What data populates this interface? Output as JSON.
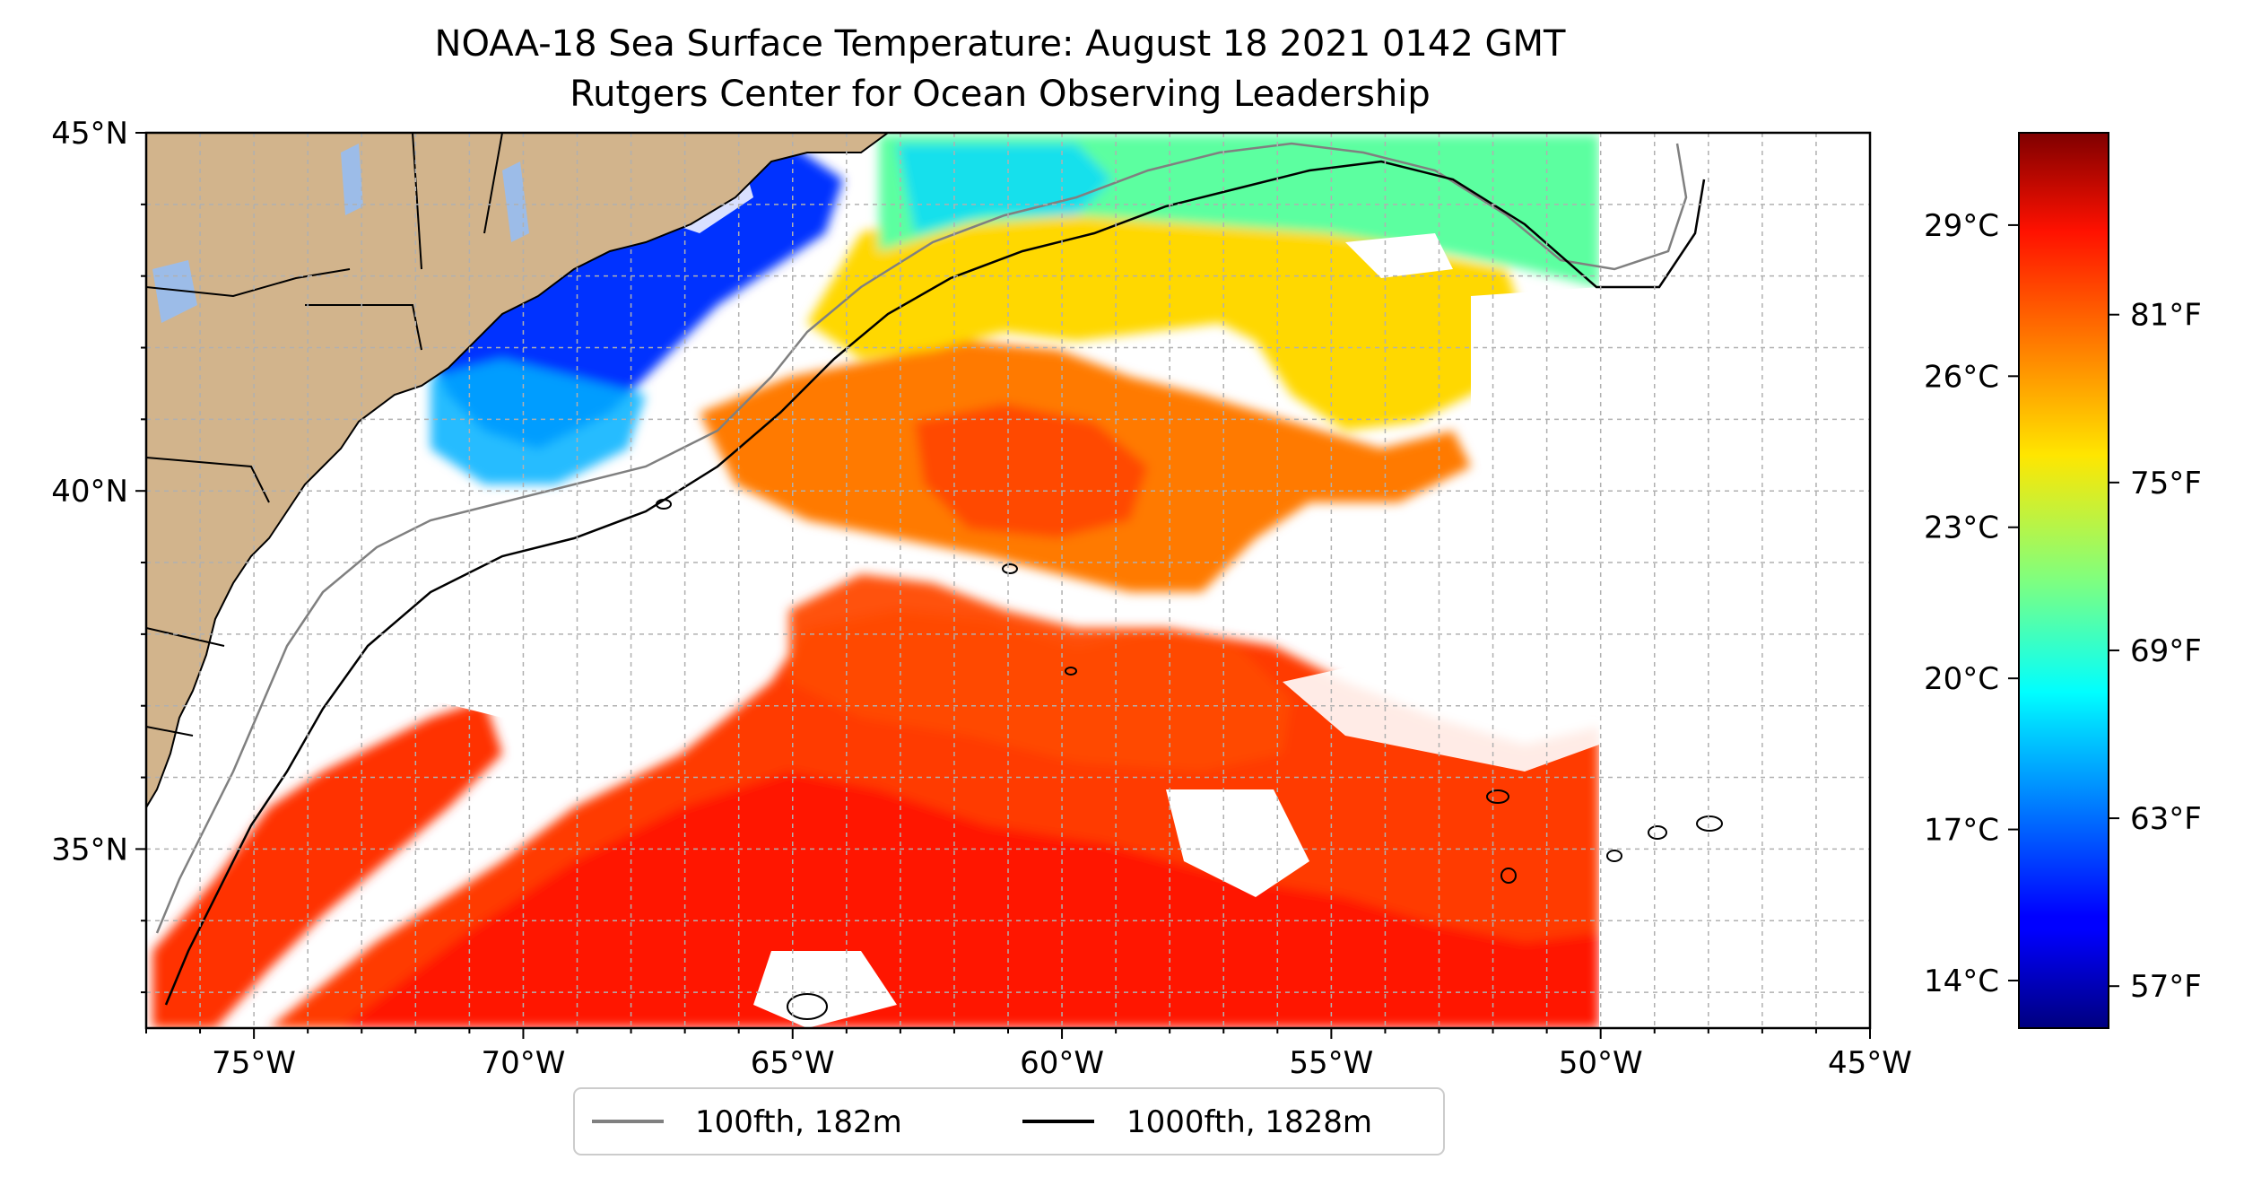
{
  "title": {
    "line1": "NOAA-18 Sea Surface Temperature: August 18 2021 0142 GMT",
    "line2": "Rutgers Center for Ocean Observing Leadership"
  },
  "map": {
    "lon_range": [
      -77,
      -45
    ],
    "lat_range": [
      32.5,
      45
    ],
    "land_color": "#d2b48c",
    "lake_color": "#9cbce8",
    "grid": "dashed",
    "lon_ticks": [
      {
        "value": -75,
        "label": "75°W"
      },
      {
        "value": -70,
        "label": "70°W"
      },
      {
        "value": -65,
        "label": "65°W"
      },
      {
        "value": -60,
        "label": "60°W"
      },
      {
        "value": -55,
        "label": "55°W"
      },
      {
        "value": -50,
        "label": "50°W"
      },
      {
        "value": -45,
        "label": "45°W"
      }
    ],
    "lat_ticks": [
      {
        "value": 35,
        "label": "35°N"
      },
      {
        "value": 40,
        "label": "40°N"
      },
      {
        "value": 45,
        "label": "45°N"
      }
    ]
  },
  "colorbar": {
    "colormap": "jet",
    "range_f": [
      55.5,
      87.5
    ],
    "celsius_ticks": [
      {
        "value": 14,
        "label": "14°C"
      },
      {
        "value": 17,
        "label": "17°C"
      },
      {
        "value": 20,
        "label": "20°C"
      },
      {
        "value": 23,
        "label": "23°C"
      },
      {
        "value": 26,
        "label": "26°C"
      },
      {
        "value": 29,
        "label": "29°C"
      }
    ],
    "fahrenheit_ticks": [
      {
        "value": 57,
        "label": "57°F"
      },
      {
        "value": 63,
        "label": "63°F"
      },
      {
        "value": 69,
        "label": "69°F"
      },
      {
        "value": 75,
        "label": "75°F"
      },
      {
        "value": 81,
        "label": "81°F"
      }
    ]
  },
  "legend": {
    "items": [
      {
        "label": "100fth, 182m",
        "color": "#808080"
      },
      {
        "label": "1000fth, 1828m",
        "color": "#000000"
      }
    ]
  }
}
